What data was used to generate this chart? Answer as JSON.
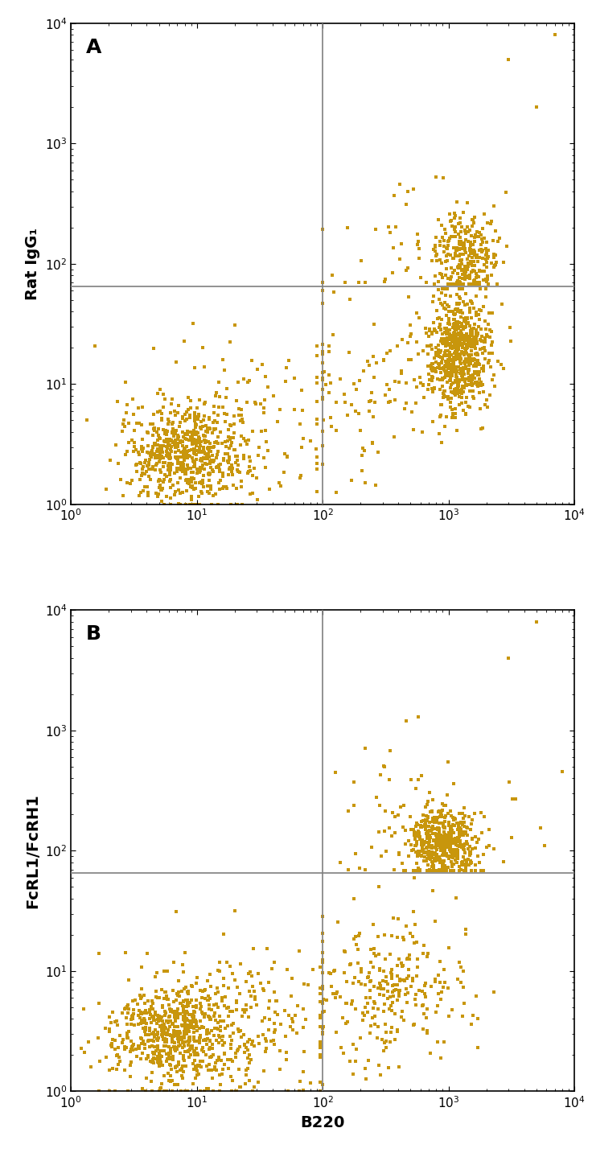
{
  "dot_color": "#C8960C",
  "background_color": "#FFFFFF",
  "xlim": [
    1,
    10000
  ],
  "ylim": [
    1,
    10000
  ],
  "xline": 100,
  "panel_A": {
    "yline": 65,
    "ylabel": "Rat IgG₁",
    "label": "A"
  },
  "panel_B": {
    "yline": 65,
    "ylabel": "FcRL1/FcRH1",
    "label": "B"
  },
  "xlabel": "B220",
  "marker_size": 6,
  "line_color": "#7f7f7f",
  "line_width": 1.2,
  "tick_label_size": 11,
  "axis_label_size": 14,
  "panel_label_size": 18
}
